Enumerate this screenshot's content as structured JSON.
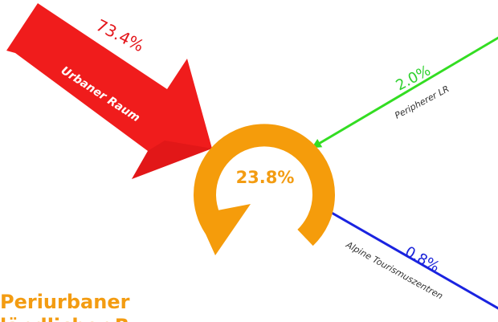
{
  "center": {
    "percent": "23.8%",
    "color": "#f59c0b"
  },
  "inflows": {
    "urbaner_raum": {
      "label": "Urbaner Raum",
      "percent": "73.4%",
      "color": "#f01c1c"
    },
    "peripherer_lr": {
      "label": "Peripherer LR",
      "percent": "2.0%",
      "color": "#33dd22"
    },
    "alpine_tourismuszentren": {
      "label": "Alpine Tourismuszentren",
      "percent": "0.8%",
      "color": "#1a23e0"
    }
  },
  "bottom_title": {
    "line1": "Periurbaner",
    "line2": "ländlicher R"
  }
}
